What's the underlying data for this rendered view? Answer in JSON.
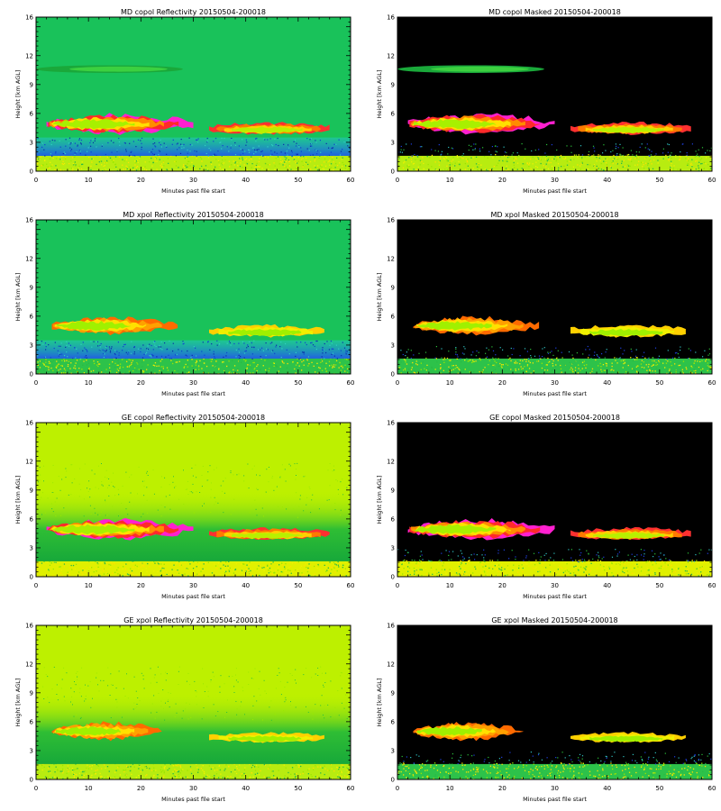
{
  "chart_data": [
    {
      "type": "heatmap",
      "title": "MD copol Reflectivity 20150504-200018",
      "xlabel": "Minutes past file start",
      "ylabel": "Height [km AGL]",
      "xlim": [
        0,
        60
      ],
      "ylim": [
        0,
        16
      ],
      "xticks": [
        "0",
        "10",
        "20",
        "30",
        "40",
        "50",
        "60"
      ],
      "yticks": [
        "0",
        "3",
        "6",
        "9",
        "12",
        "16"
      ],
      "background_color": "#19c25a",
      "mask": false,
      "features": [
        {
          "kind": "low-layer",
          "x": [
            0,
            60
          ],
          "y": [
            0,
            1.6
          ],
          "intensity": "yellow-green"
        },
        {
          "kind": "noise-band",
          "x": [
            0,
            60
          ],
          "y": [
            1.6,
            3.5
          ],
          "intensity": "blue-cyan"
        },
        {
          "kind": "cloud-main",
          "x": [
            2,
            30
          ],
          "y": [
            4.0,
            5.8
          ],
          "peak": "magenta"
        },
        {
          "kind": "cloud-tail",
          "x": [
            33,
            56
          ],
          "y": [
            3.9,
            5.0
          ],
          "peak": "red"
        },
        {
          "kind": "upper-layer",
          "x": [
            0,
            28
          ],
          "y": [
            10.2,
            11.0
          ],
          "intensity": "green"
        }
      ]
    },
    {
      "type": "heatmap",
      "title": "MD copol Masked 20150504-200018",
      "xlabel": "Minutes past file start",
      "ylabel": "Height [km AGL]",
      "xlim": [
        0,
        60
      ],
      "ylim": [
        0,
        16
      ],
      "xticks": [
        "0",
        "10",
        "20",
        "30",
        "40",
        "50",
        "60"
      ],
      "yticks": [
        "0",
        "3",
        "6",
        "9",
        "12",
        "16"
      ],
      "background_color": "#000000",
      "mask": true,
      "features": [
        {
          "kind": "low-layer",
          "x": [
            0,
            60
          ],
          "y": [
            0,
            1.6
          ],
          "intensity": "yellow-green"
        },
        {
          "kind": "cloud-main",
          "x": [
            2,
            30
          ],
          "y": [
            4.0,
            5.8
          ],
          "peak": "magenta"
        },
        {
          "kind": "cloud-tail",
          "x": [
            33,
            56
          ],
          "y": [
            3.9,
            5.0
          ],
          "peak": "red"
        },
        {
          "kind": "upper-layer",
          "x": [
            0,
            28
          ],
          "y": [
            10.2,
            11.0
          ],
          "intensity": "green"
        }
      ]
    },
    {
      "type": "heatmap",
      "title": "MD xpol Reflectivity 20150504-200018",
      "xlabel": "Minutes past file start",
      "ylabel": "Height [km AGL]",
      "xlim": [
        0,
        60
      ],
      "ylim": [
        0,
        16
      ],
      "xticks": [
        "0",
        "10",
        "20",
        "30",
        "40",
        "50",
        "60"
      ],
      "yticks": [
        "0",
        "3",
        "6",
        "9",
        "12",
        "16"
      ],
      "background_color": "#19c25a",
      "mask": false,
      "features": [
        {
          "kind": "low-layer",
          "x": [
            0,
            60
          ],
          "y": [
            0,
            1.6
          ],
          "intensity": "green"
        },
        {
          "kind": "noise-band",
          "x": [
            0,
            60
          ],
          "y": [
            1.6,
            3.5
          ],
          "intensity": "blue-cyan"
        },
        {
          "kind": "cloud-main",
          "x": [
            3,
            27
          ],
          "y": [
            4.2,
            5.8
          ],
          "peak": "orange"
        },
        {
          "kind": "cloud-tail",
          "x": [
            33,
            55
          ],
          "y": [
            3.9,
            5.0
          ],
          "peak": "yellow"
        }
      ]
    },
    {
      "type": "heatmap",
      "title": "MD xpol Masked 20150504-200018",
      "xlabel": "Minutes past file start",
      "ylabel": "Height [km AGL]",
      "xlim": [
        0,
        60
      ],
      "ylim": [
        0,
        16
      ],
      "xticks": [
        "0",
        "10",
        "20",
        "30",
        "40",
        "50",
        "60"
      ],
      "yticks": [
        "0",
        "3",
        "6",
        "9",
        "12",
        "16"
      ],
      "background_color": "#000000",
      "mask": true,
      "features": [
        {
          "kind": "low-layer",
          "x": [
            0,
            60
          ],
          "y": [
            0,
            1.6
          ],
          "intensity": "green"
        },
        {
          "kind": "cloud-main",
          "x": [
            3,
            27
          ],
          "y": [
            4.2,
            5.8
          ],
          "peak": "orange"
        },
        {
          "kind": "cloud-tail",
          "x": [
            33,
            55
          ],
          "y": [
            3.9,
            5.0
          ],
          "peak": "yellow"
        }
      ]
    },
    {
      "type": "heatmap",
      "title": "GE copol Reflectivity 20150504-200018",
      "xlabel": "Minutes past file start",
      "ylabel": "Height [km AGL]",
      "xlim": [
        0,
        60
      ],
      "ylim": [
        0,
        16
      ],
      "xticks": [
        "0",
        "10",
        "20",
        "30",
        "40",
        "50",
        "60"
      ],
      "yticks": [
        "0",
        "3",
        "6",
        "9",
        "12",
        "16"
      ],
      "background_color": "#bdf000",
      "mask": false,
      "features": [
        {
          "kind": "low-layer",
          "x": [
            0,
            60
          ],
          "y": [
            0,
            1.6
          ],
          "intensity": "yellow"
        },
        {
          "kind": "green-band",
          "x": [
            0,
            60
          ],
          "y": [
            1.6,
            9.0
          ],
          "intensity": "green"
        },
        {
          "kind": "cloud-main",
          "x": [
            2,
            30
          ],
          "y": [
            4.0,
            5.8
          ],
          "peak": "magenta"
        },
        {
          "kind": "cloud-tail",
          "x": [
            33,
            56
          ],
          "y": [
            3.9,
            5.0
          ],
          "peak": "red"
        }
      ]
    },
    {
      "type": "heatmap",
      "title": "GE copol Masked 20150504-200018",
      "xlabel": "Minutes past file start",
      "ylabel": "Height [km AGL]",
      "xlim": [
        0,
        60
      ],
      "ylim": [
        0,
        16
      ],
      "xticks": [
        "0",
        "10",
        "20",
        "30",
        "40",
        "50",
        "60"
      ],
      "yticks": [
        "0",
        "3",
        "6",
        "9",
        "12",
        "16"
      ],
      "background_color": "#000000",
      "mask": true,
      "features": [
        {
          "kind": "low-layer",
          "x": [
            0,
            60
          ],
          "y": [
            0,
            1.6
          ],
          "intensity": "yellow"
        },
        {
          "kind": "cloud-main",
          "x": [
            2,
            30
          ],
          "y": [
            4.0,
            5.8
          ],
          "peak": "magenta"
        },
        {
          "kind": "cloud-tail",
          "x": [
            33,
            56
          ],
          "y": [
            3.9,
            5.0
          ],
          "peak": "red"
        }
      ]
    },
    {
      "type": "heatmap",
      "title": "GE xpol Reflectivity 20150504-200018",
      "xlabel": "Minutes past file start",
      "ylabel": "Height [km AGL]",
      "xlim": [
        0,
        60
      ],
      "ylim": [
        0,
        16
      ],
      "xticks": [
        "0",
        "10",
        "20",
        "30",
        "40",
        "50",
        "60"
      ],
      "yticks": [
        "0",
        "3",
        "6",
        "9",
        "12",
        "16"
      ],
      "background_color": "#bdf000",
      "mask": false,
      "features": [
        {
          "kind": "low-layer",
          "x": [
            0,
            60
          ],
          "y": [
            0,
            1.6
          ],
          "intensity": "yellow-green"
        },
        {
          "kind": "green-band",
          "x": [
            0,
            60
          ],
          "y": [
            1.6,
            9.0
          ],
          "intensity": "green"
        },
        {
          "kind": "cloud-main",
          "x": [
            3,
            24
          ],
          "y": [
            4.2,
            5.8
          ],
          "peak": "orange"
        },
        {
          "kind": "cloud-tail",
          "x": [
            33,
            55
          ],
          "y": [
            3.9,
            4.8
          ],
          "peak": "yellow"
        }
      ]
    },
    {
      "type": "heatmap",
      "title": "GE xpol Masked 20150504-200018",
      "xlabel": "Minutes past file start",
      "ylabel": "Height [km AGL]",
      "xlim": [
        0,
        60
      ],
      "ylim": [
        0,
        16
      ],
      "xticks": [
        "0",
        "10",
        "20",
        "30",
        "40",
        "50",
        "60"
      ],
      "yticks": [
        "0",
        "3",
        "6",
        "9",
        "12",
        "16"
      ],
      "background_color": "#000000",
      "mask": true,
      "features": [
        {
          "kind": "low-layer",
          "x": [
            0,
            60
          ],
          "y": [
            0,
            1.6
          ],
          "intensity": "green"
        },
        {
          "kind": "cloud-main",
          "x": [
            3,
            24
          ],
          "y": [
            4.2,
            5.8
          ],
          "peak": "orange"
        },
        {
          "kind": "cloud-tail",
          "x": [
            33,
            55
          ],
          "y": [
            3.9,
            4.8
          ],
          "peak": "yellow"
        }
      ]
    }
  ]
}
